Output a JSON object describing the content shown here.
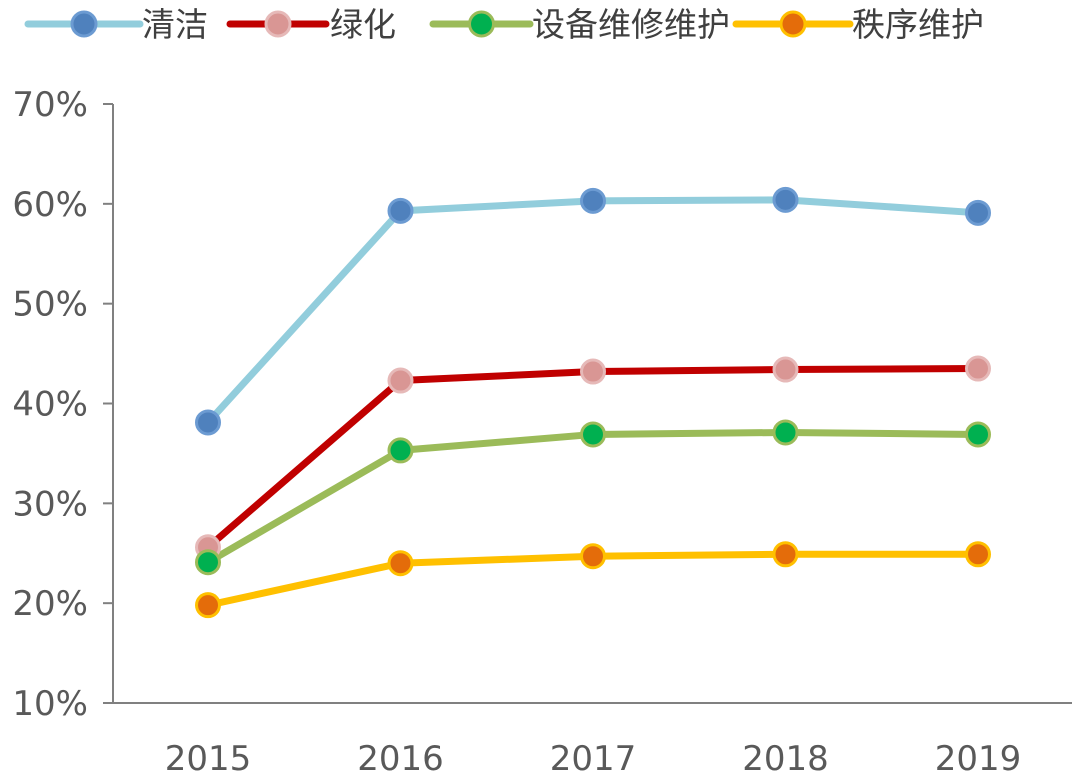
{
  "chart_data": {
    "type": "line",
    "categories": [
      "2015",
      "2016",
      "2017",
      "2018",
      "2019"
    ],
    "ylim": [
      10,
      70
    ],
    "yticks": [
      "10%",
      "20%",
      "30%",
      "40%",
      "50%",
      "60%",
      "70%"
    ],
    "grid": false,
    "legend_position": "top",
    "series": [
      {
        "name": "清洁",
        "values": [
          38.1,
          59.3,
          60.3,
          60.4,
          59.1
        ],
        "line_color": "#92CDDC",
        "marker_color": "#4F81BD",
        "marker_edge": "#6C9BD2"
      },
      {
        "name": "绿化",
        "values": [
          25.6,
          42.3,
          43.2,
          43.4,
          43.5
        ],
        "line_color": "#C00000",
        "marker_color": "#D99694",
        "marker_edge": "#E6B9B8"
      },
      {
        "name": "设备维修维护",
        "values": [
          24.1,
          35.3,
          36.9,
          37.1,
          36.9
        ],
        "line_color": "#9BBB59",
        "marker_color": "#00B050",
        "marker_edge": "#9BBB59"
      },
      {
        "name": "秩序维护",
        "values": [
          19.8,
          24.0,
          24.7,
          24.9,
          24.9
        ],
        "line_color": "#FFC000",
        "marker_color": "#E46C0A",
        "marker_edge": "#FFC000"
      }
    ]
  }
}
